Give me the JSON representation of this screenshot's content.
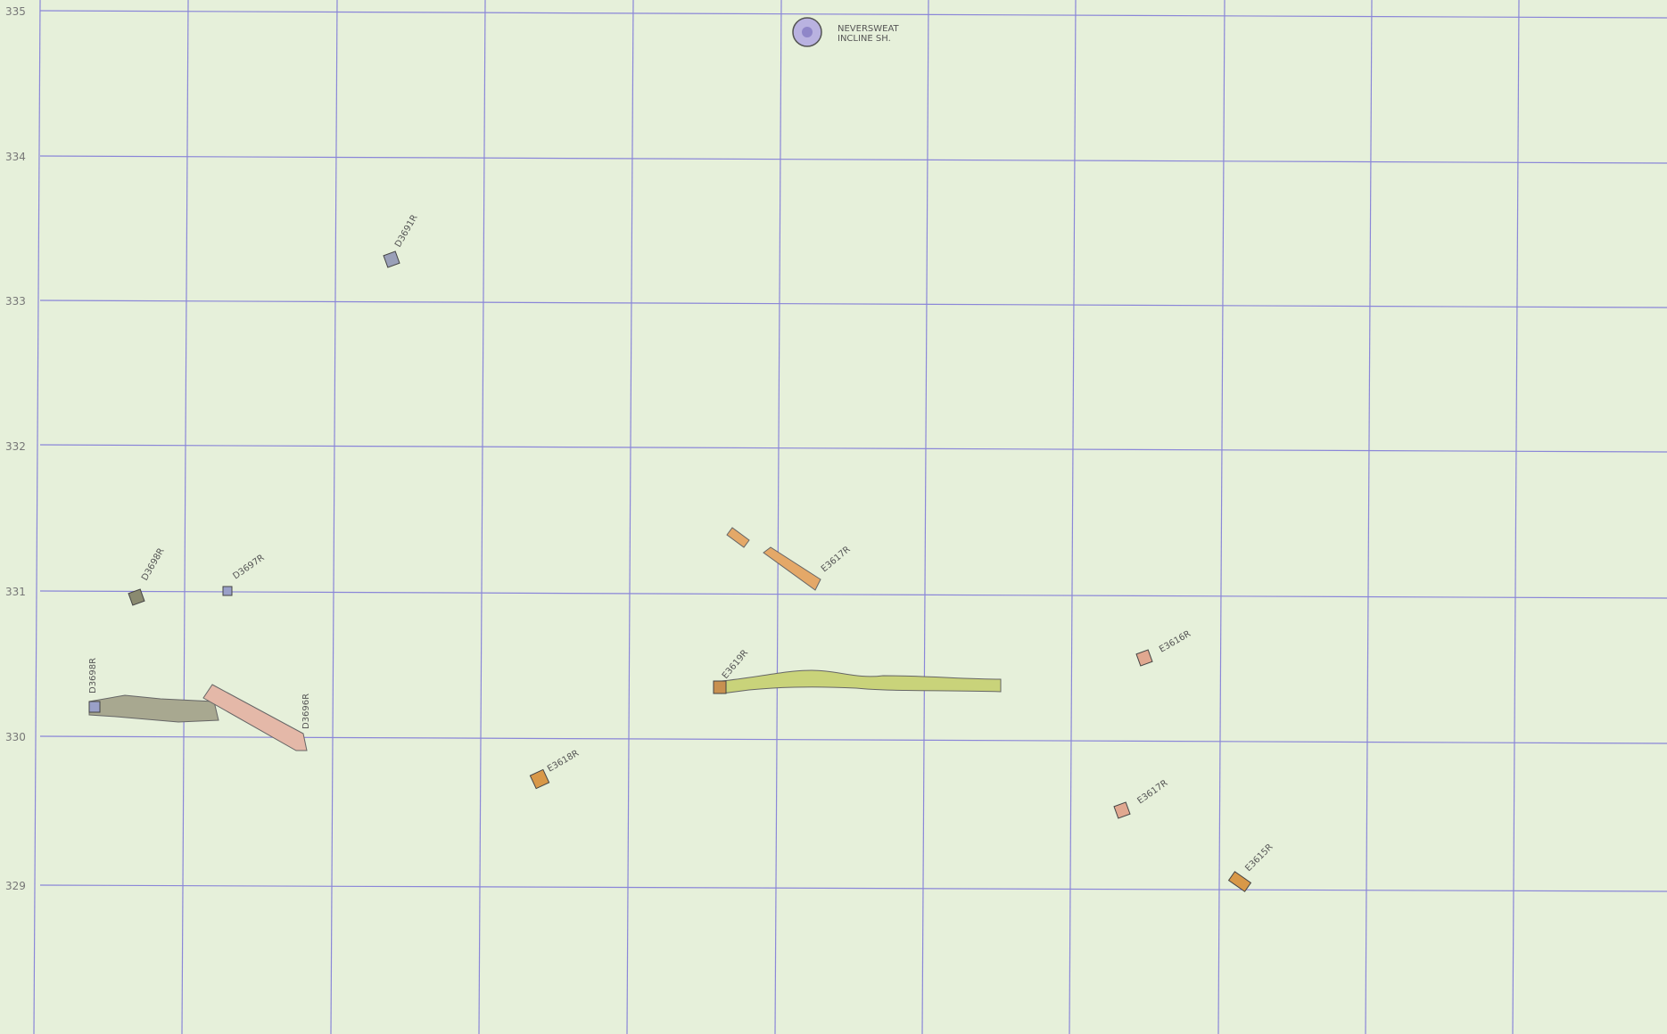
{
  "grid": {
    "row_labels": [
      "335",
      "334",
      "333",
      "332",
      "331",
      "330",
      "329"
    ]
  },
  "shaft": {
    "name": "NEVERSWEAT",
    "subname": "INCLINE SH."
  },
  "features": [
    {
      "label": "D3691R"
    },
    {
      "label": "D3698R"
    },
    {
      "label": "D3697R"
    },
    {
      "label": "D3698R"
    },
    {
      "label": "D3696R"
    },
    {
      "label": "E3619R"
    },
    {
      "label": "E3617R"
    },
    {
      "label": "E3618R"
    },
    {
      "label": "E3616R"
    },
    {
      "label": "E3617R"
    },
    {
      "label": "E3615R"
    }
  ]
}
